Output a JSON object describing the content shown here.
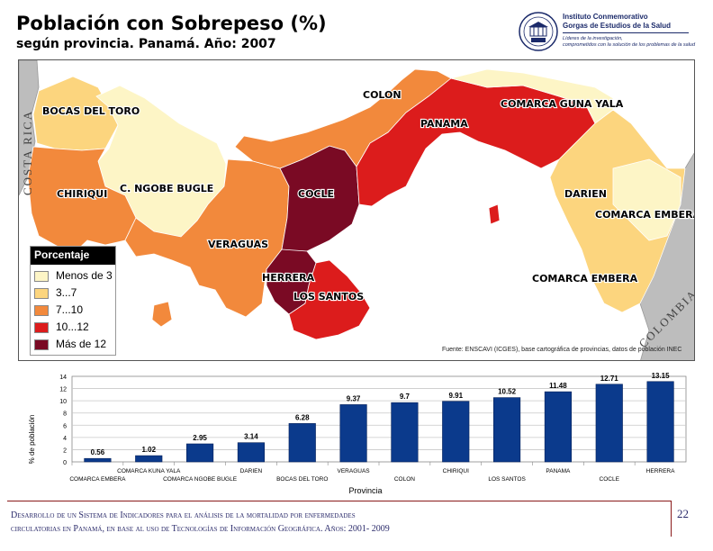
{
  "title": "Población con Sobrepeso (%)",
  "subtitle": "según provincia. Panamá. Año: 2007",
  "logo": {
    "line1": "Instituto Conmemorativo",
    "line2": "Gorgas de Estudios de la Salud",
    "tagline1": "Líderes de la investigación,",
    "tagline2": "comprometidos con la solución de los problemas de la salud"
  },
  "map": {
    "neighbors": {
      "west": "COSTA RICA",
      "east": "COLOMBIA"
    },
    "labels": {
      "bocas": "BOCAS DEL TORO",
      "colon": "COLON",
      "guna": "COMARCA GUNA YALA",
      "panama": "PANAMA",
      "chiriqui": "CHIRIQUI",
      "ngobe": "C. NGOBE BUGLE",
      "cocle": "COCLE",
      "darien": "DARIEN",
      "embera1": "COMARCA EMBERA",
      "veraguas": "VERAGUAS",
      "herrera": "HERRERA",
      "santos": "LOS SANTOS",
      "embera2": "COMARCA EMBERA"
    },
    "colors": {
      "class1": "#fdf5c6",
      "class2": "#fcd57e",
      "class3": "#f2893c",
      "class4": "#dc1c1c",
      "class5": "#7a0a24",
      "neighbor": "#bdbdbd",
      "sea": "#ffffff"
    },
    "legend": {
      "title": "Porcentaje",
      "items": [
        {
          "label": "Menos de 3",
          "color": "#fdf5c6"
        },
        {
          "label": "3...7",
          "color": "#fcd57e"
        },
        {
          "label": "7...10",
          "color": "#f2893c"
        },
        {
          "label": "10...12",
          "color": "#dc1c1c"
        },
        {
          "label": "Más de 12",
          "color": "#7a0a24"
        }
      ]
    },
    "source": "Fuente: ENSCAVI (ICGES), base cartográfica de provincias, datos de población INEC"
  },
  "chart_data": {
    "type": "bar",
    "categories": [
      "COMARCA EMBERA",
      "COMARCA KUNA YALA",
      "COMARCA NGOBE BUGLE",
      "DARIEN",
      "BOCAS DEL TORO",
      "VERAGUAS",
      "COLON",
      "CHIRIQUI",
      "LOS SANTOS",
      "PANAMA",
      "COCLE",
      "HERRERA"
    ],
    "values": [
      0.56,
      1.02,
      2.95,
      3.14,
      6.28,
      9.37,
      9.7,
      9.91,
      10.52,
      11.48,
      12.71,
      13.15
    ],
    "value_labels": [
      "0.56",
      "1.02",
      "2.95",
      "3.14",
      "6.28",
      "9.37",
      "9.7",
      "9.91",
      "10.52",
      "11.48",
      "12.71",
      "13.15"
    ],
    "xlabel": "Provincia",
    "ylabel": "% de población",
    "ylim": [
      0,
      14
    ],
    "yticks": [
      "0",
      "2",
      "4",
      "6",
      "8",
      "10",
      "12",
      "14"
    ],
    "grid": true,
    "bar_color": "#0b3a8c"
  },
  "footer": {
    "line1": "Desarrollo de un Sistema de Indicadores para el análisis de la mortalidad por enfermedades",
    "line2": "circulatorias en Panamá, en base al uso de Tecnologías de Información Geográfica. Años: 2001- 2009",
    "page": "22"
  }
}
